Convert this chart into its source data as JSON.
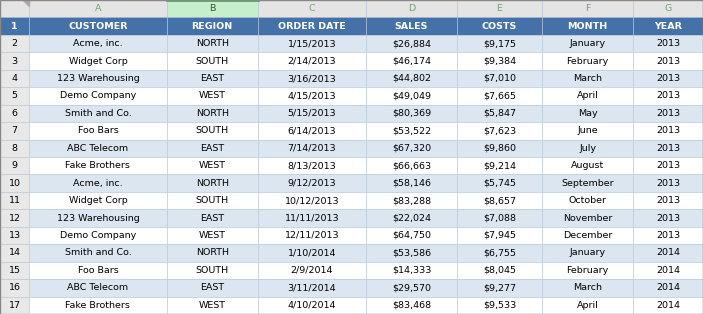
{
  "columns": [
    "A",
    "B",
    "C",
    "D",
    "E",
    "F",
    "G"
  ],
  "headers": [
    "CUSTOMER",
    "REGION",
    "ORDER DATE",
    "SALES",
    "COSTS",
    "MONTH",
    "YEAR"
  ],
  "rows": [
    [
      "Acme, inc.",
      "NORTH",
      "1/15/2013",
      "$26,884",
      "$9,175",
      "January",
      "2013"
    ],
    [
      "Widget Corp",
      "SOUTH",
      "2/14/2013",
      "$46,174",
      "$9,384",
      "February",
      "2013"
    ],
    [
      "123 Warehousing",
      "EAST",
      "3/16/2013",
      "$44,802",
      "$7,010",
      "March",
      "2013"
    ],
    [
      "Demo Company",
      "WEST",
      "4/15/2013",
      "$49,049",
      "$7,665",
      "April",
      "2013"
    ],
    [
      "Smith and Co.",
      "NORTH",
      "5/15/2013",
      "$80,369",
      "$5,847",
      "May",
      "2013"
    ],
    [
      "Foo Bars",
      "SOUTH",
      "6/14/2013",
      "$53,522",
      "$7,623",
      "June",
      "2013"
    ],
    [
      "ABC Telecom",
      "EAST",
      "7/14/2013",
      "$67,320",
      "$9,860",
      "July",
      "2013"
    ],
    [
      "Fake Brothers",
      "WEST",
      "8/13/2013",
      "$66,663",
      "$9,214",
      "August",
      "2013"
    ],
    [
      "Acme, inc.",
      "NORTH",
      "9/12/2013",
      "$58,146",
      "$5,745",
      "September",
      "2013"
    ],
    [
      "Widget Corp",
      "SOUTH",
      "10/12/2013",
      "$83,288",
      "$8,657",
      "October",
      "2013"
    ],
    [
      "123 Warehousing",
      "EAST",
      "11/11/2013",
      "$22,024",
      "$7,088",
      "November",
      "2013"
    ],
    [
      "Demo Company",
      "WEST",
      "12/11/2013",
      "$64,750",
      "$7,945",
      "December",
      "2013"
    ],
    [
      "Smith and Co.",
      "NORTH",
      "1/10/2014",
      "$53,586",
      "$6,755",
      "January",
      "2014"
    ],
    [
      "Foo Bars",
      "SOUTH",
      "2/9/2014",
      "$14,333",
      "$8,045",
      "February",
      "2014"
    ],
    [
      "ABC Telecom",
      "EAST",
      "3/11/2014",
      "$29,570",
      "$9,277",
      "March",
      "2014"
    ],
    [
      "Fake Brothers",
      "WEST",
      "4/10/2014",
      "$83,468",
      "$9,533",
      "April",
      "2014"
    ]
  ],
  "row_numbers": [
    "1",
    "2",
    "3",
    "4",
    "5",
    "6",
    "7",
    "8",
    "9",
    "10",
    "11",
    "12",
    "13",
    "14",
    "15",
    "16",
    "17"
  ],
  "header_bg": "#4472A8",
  "header_text": "#FFFFFF",
  "row_bg_even": "#DCE6F1",
  "row_bg_odd": "#FFFFFF",
  "grid_color": "#B8C8D8",
  "row_num_bg": "#E8E8E8",
  "col_header_bg": "#E4E4E4",
  "col_header_text": "#7B9E7B",
  "cell_text": "#000000",
  "selected_col_bg": "#C6EFCE",
  "selected_col_header_bg": "#C6EFCE",
  "selected_col_header_text": "#375623",
  "font_size": 6.8,
  "header_font_size": 6.8,
  "col_header_font_size": 6.8
}
